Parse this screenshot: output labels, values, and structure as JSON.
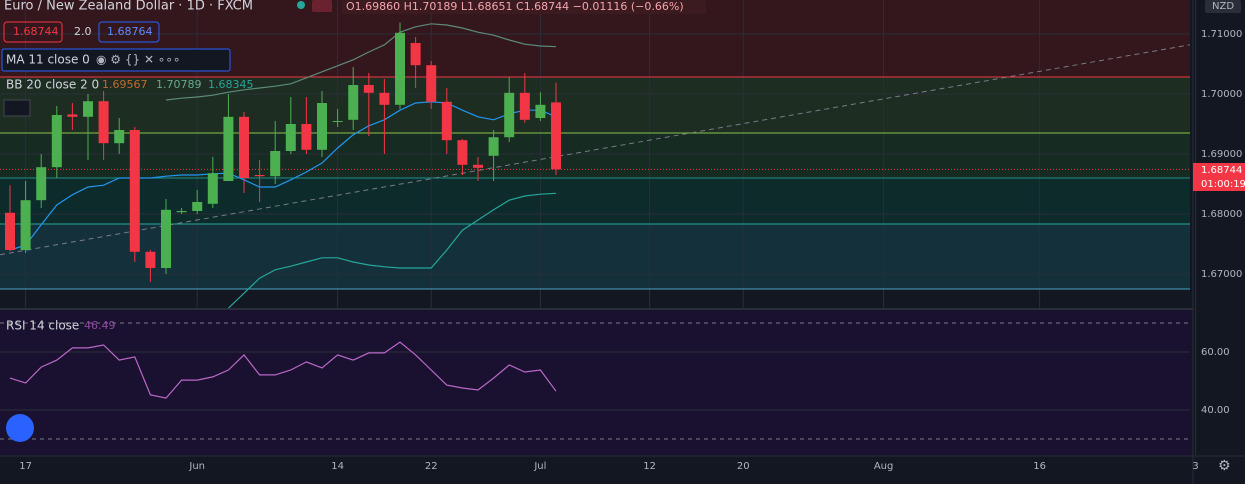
{
  "header": {
    "symbol": "Euro / New Zealand Dollar · 1D · FXCM",
    "ohlc": "O1.69860 H1.70189 L1.68651 C1.68744 −0.01116 (−0.66%)",
    "bid": "1.68744",
    "spread": "2.0",
    "ask": "1.68764",
    "ma": "MA 11 close 0",
    "bb": "BB 20 close 2 0",
    "bb_mid": "1.69567",
    "bb_up": "1.70789",
    "bb_low": "1.68345",
    "rsi": "RSI 14 close",
    "rsi_val": "46.49",
    "currency": "NZD",
    "price_tag": "1.68744",
    "countdown": "01:00:19"
  },
  "chart_data": [
    {
      "type": "candlestick",
      "xlim": [
        -0.641,
        75.64
      ],
      "ylim": [
        1.66433,
        1.71567
      ],
      "yticks": [
        {
          "value": 1.71,
          "label": "1.71000"
        },
        {
          "value": 1.7,
          "label": "1.70000"
        },
        {
          "value": 1.69,
          "label": "1.69000"
        },
        {
          "value": 1.68,
          "label": "1.68000"
        },
        {
          "value": 1.67,
          "label": "1.67000"
        }
      ],
      "xticks": [
        {
          "value": 1,
          "label": "17"
        },
        {
          "value": 12,
          "label": "Jun"
        },
        {
          "value": 21,
          "label": "14"
        },
        {
          "value": 27,
          "label": "22"
        },
        {
          "value": 34,
          "label": "Jul"
        },
        {
          "value": 41,
          "label": "12"
        },
        {
          "value": 47,
          "label": "20"
        },
        {
          "value": 56,
          "label": "Aug"
        },
        {
          "value": 66,
          "label": "16"
        },
        {
          "value": 76,
          "label": "3"
        }
      ],
      "up_color": "#4caf50",
      "down_color": "#f23645",
      "open": [
        1.6802,
        1.674,
        1.6823,
        1.6878,
        1.6966,
        1.6962,
        1.6988,
        1.6918,
        1.694,
        1.6737,
        1.671,
        1.6803,
        1.6805,
        1.6817,
        1.6855,
        1.6962,
        1.6865,
        1.6863,
        1.6905,
        1.695,
        1.6907,
        1.6955,
        1.6957,
        1.7015,
        1.7002,
        1.6982,
        1.7085,
        1.7048,
        1.6987,
        1.6923,
        1.6882,
        1.6897,
        1.6928,
        1.7002,
        1.696,
        1.6986
      ],
      "high": [
        1.6848,
        1.6855,
        1.69,
        1.698,
        1.6985,
        1.7,
        1.7005,
        1.696,
        1.6945,
        1.674,
        1.6825,
        1.681,
        1.684,
        1.6895,
        1.7,
        1.697,
        1.689,
        1.6955,
        1.6995,
        1.6995,
        1.7005,
        1.6975,
        1.7045,
        1.7035,
        1.7025,
        1.7119,
        1.7095,
        1.7055,
        1.701,
        1.6925,
        1.6895,
        1.694,
        1.7028,
        1.7035,
        1.7003,
        1.70189
      ],
      "low": [
        1.6738,
        1.6735,
        1.681,
        1.686,
        1.694,
        1.689,
        1.689,
        1.69,
        1.672,
        1.6687,
        1.67,
        1.68,
        1.68,
        1.681,
        1.6855,
        1.6835,
        1.682,
        1.685,
        1.69,
        1.69,
        1.6895,
        1.6945,
        1.694,
        1.693,
        1.69,
        1.6975,
        1.701,
        1.6975,
        1.69,
        1.6865,
        1.6855,
        1.6855,
        1.692,
        1.6952,
        1.6955,
        1.68651
      ],
      "close": [
        1.674,
        1.6823,
        1.6878,
        1.6965,
        1.6962,
        1.6988,
        1.6918,
        1.694,
        1.6737,
        1.671,
        1.6807,
        1.6805,
        1.682,
        1.6868,
        1.6962,
        1.686,
        1.6863,
        1.6905,
        1.695,
        1.6907,
        1.6985,
        1.6955,
        1.7015,
        1.7002,
        1.6982,
        1.7102,
        1.7048,
        1.6987,
        1.6923,
        1.6882,
        1.6877,
        1.6928,
        1.7002,
        1.6957,
        1.6982,
        1.68744
      ],
      "series": [
        {
          "name": "MA 11",
          "color": "#2196f3",
          "values": [
            1.674,
            1.6748,
            1.6782,
            1.6815,
            1.6832,
            1.6845,
            1.6848,
            1.686,
            1.686,
            1.686,
            1.6863,
            1.6865,
            1.6865,
            1.6867,
            1.6868,
            1.6857,
            1.6845,
            1.6845,
            1.6857,
            1.687,
            1.6885,
            1.691,
            1.6932,
            1.6947,
            1.6957,
            1.6973,
            1.6985,
            1.6987,
            1.6985,
            1.6973,
            1.6962,
            1.6957,
            1.6967,
            1.6973,
            1.6973,
            1.6962
          ]
        },
        {
          "name": "BB upper",
          "color": "#5d8a7a",
          "values": [
            null,
            null,
            null,
            null,
            null,
            null,
            null,
            null,
            null,
            null,
            1.699,
            1.6993,
            1.6995,
            1.6998,
            1.7003,
            1.7007,
            1.701,
            1.7013,
            1.7017,
            1.7027,
            1.7037,
            1.7047,
            1.7057,
            1.707,
            1.7082,
            1.7103,
            1.7112,
            1.7117,
            1.7115,
            1.711,
            1.7103,
            1.7098,
            1.709,
            1.7083,
            1.708,
            1.70789
          ]
        },
        {
          "name": "BB lower",
          "color": "#26a69a",
          "values": [
            null,
            null,
            null,
            null,
            null,
            null,
            null,
            null,
            null,
            null,
            null,
            null,
            null,
            null,
            1.6643,
            1.6668,
            1.6693,
            1.6707,
            1.6713,
            1.672,
            1.6727,
            1.6727,
            1.672,
            1.6715,
            1.6712,
            1.671,
            1.671,
            1.671,
            1.674,
            1.6773,
            1.679,
            1.6807,
            1.6823,
            1.683,
            1.6833,
            1.68345
          ]
        }
      ],
      "levels": [
        1.70283,
        1.6935,
        1.686,
        1.67833,
        1.6675
      ],
      "level_colors": [
        "#f23645",
        "#8bc34a",
        "#1c8f84",
        "#26a69a",
        "#4aa3c4"
      ],
      "zone_colors": [
        "#34171c",
        "#1d2d22",
        "#162b22",
        "#0d2b2b",
        "#14303a",
        "#131722"
      ],
      "price_line": 1.68744,
      "trendline": [
        [
          -0.641,
          1.6732
        ],
        [
          75.64,
          1.7082
        ]
      ]
    },
    {
      "type": "line",
      "xlim": [
        -0.641,
        75.64
      ],
      "ylim": [
        24.48,
        74.48
      ],
      "yticks": [
        {
          "value": 60,
          "label": "60.00"
        },
        {
          "value": 40,
          "label": "40.00"
        }
      ],
      "levels": [
        70,
        30
      ],
      "series": [
        {
          "name": "RSI 14",
          "color": "#ba68c8",
          "values": [
            51.0,
            49.3,
            54.8,
            57.2,
            61.4,
            61.4,
            62.4,
            57.2,
            58.3,
            45.2,
            44.1,
            50.3,
            50.3,
            51.4,
            53.8,
            59.0,
            52.1,
            52.1,
            53.8,
            56.6,
            54.5,
            59.0,
            57.2,
            59.7,
            59.7,
            63.4,
            59.0,
            53.8,
            48.6,
            47.6,
            46.9,
            51.0,
            55.5,
            53.1,
            53.8,
            46.49
          ]
        }
      ]
    }
  ]
}
